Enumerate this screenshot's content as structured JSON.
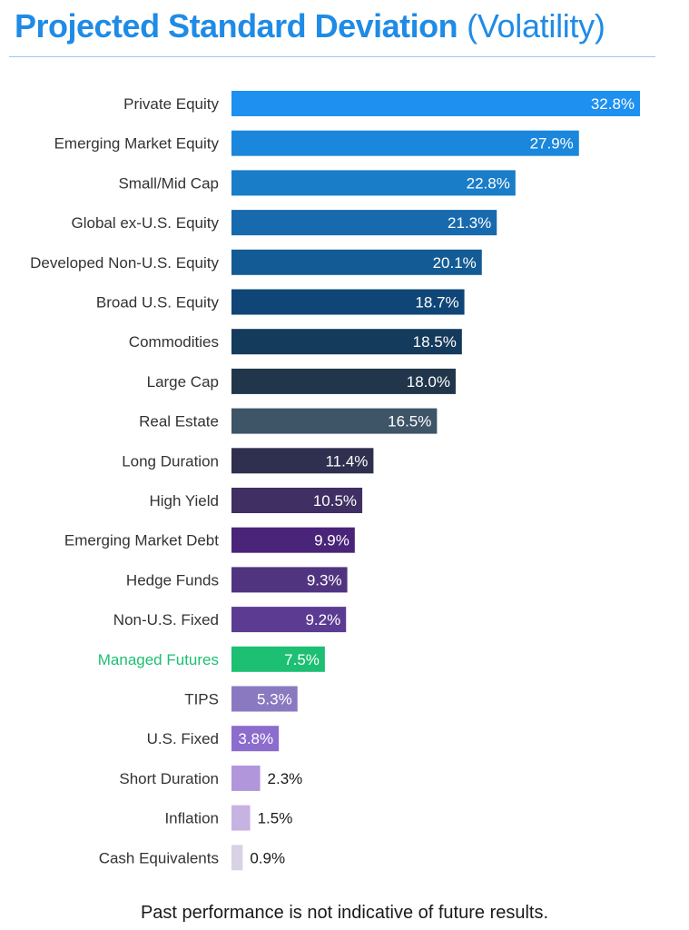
{
  "header": {
    "title_main": "Projected Standard Deviation",
    "title_sub": "(Volatility)"
  },
  "footnote": "Past performance is not indicative of future results.",
  "colors": {
    "title": "#1f8be6",
    "label_default": "#333333",
    "label_highlight": "#1dbf73"
  },
  "chart_data": {
    "type": "bar",
    "orientation": "horizontal",
    "title": "Projected Standard Deviation (Volatility)",
    "xlabel": "",
    "ylabel": "",
    "value_suffix": "%",
    "xlim": [
      0,
      35
    ],
    "grid": false,
    "legend": "none",
    "categories": [
      "Private Equity",
      "Emerging Market Equity",
      "Small/Mid Cap",
      "Global ex-U.S. Equity",
      "Developed Non-U.S. Equity",
      "Broad U.S. Equity",
      "Commodities",
      "Large Cap",
      "Real Estate",
      "Long Duration",
      "High Yield",
      "Emerging Market Debt",
      "Hedge Funds",
      "Non-U.S. Fixed",
      "Managed Futures",
      "TIPS",
      "U.S. Fixed",
      "Short Duration",
      "Inflation",
      "Cash Equivalents"
    ],
    "values": [
      32.8,
      27.9,
      22.8,
      21.3,
      20.1,
      18.7,
      18.5,
      18.0,
      16.5,
      11.4,
      10.5,
      9.9,
      9.3,
      9.2,
      7.5,
      5.3,
      3.8,
      2.3,
      1.5,
      0.9
    ],
    "value_labels": [
      "32.8%",
      "27.9%",
      "22.8%",
      "21.3%",
      "20.1%",
      "18.7%",
      "18.5%",
      "18.0%",
      "16.5%",
      "11.4%",
      "10.5%",
      "9.9%",
      "9.3%",
      "9.2%",
      "7.5%",
      "5.3%",
      "3.8%",
      "2.3%",
      "1.5%",
      "0.9%"
    ],
    "bar_colors": [
      "#1e90f0",
      "#1a87dc",
      "#1a7dc8",
      "#176aad",
      "#135b94",
      "#0f4577",
      "#143a5c",
      "#21364b",
      "#3e5467",
      "#2f2f4f",
      "#3f2f63",
      "#4a2478",
      "#51347f",
      "#5b3c92",
      "#1dbf73",
      "#8a79c1",
      "#8c6ccc",
      "#b196dc",
      "#c7b3e2",
      "#d9d2e5"
    ],
    "highlight_categories": [
      "Managed Futures"
    ]
  }
}
